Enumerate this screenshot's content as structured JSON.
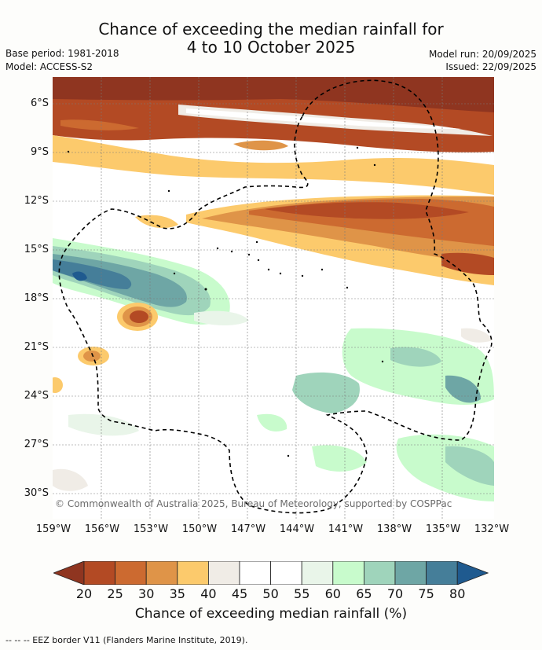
{
  "title_line1": "Chance of exceeding the median rainfall for",
  "title_line2": "4 to 10 October 2025",
  "base_period": "Base period: 1981-2018",
  "model": "Model: ACCESS-S2",
  "model_run": "Model run: 20/09/2025",
  "issued": "Issued: 22/09/2025",
  "lat_labels": [
    "6°S",
    "9°S",
    "12°S",
    "15°S",
    "18°S",
    "21°S",
    "24°S",
    "27°S",
    "30°S"
  ],
  "lon_labels": [
    "159°W",
    "156°W",
    "153°W",
    "150°W",
    "147°W",
    "144°W",
    "141°W",
    "138°W",
    "135°W",
    "132°W"
  ],
  "copyright": "© Commonwealth of Australia 2025, Bureau of Meteorology, supported by COSPPac",
  "colorbar": {
    "ticks": [
      "20",
      "25",
      "30",
      "35",
      "40",
      "45",
      "50",
      "55",
      "60",
      "65",
      "70",
      "75",
      "80"
    ],
    "colors": [
      "#b34a24",
      "#cc6a30",
      "#df9448",
      "#fcca6c",
      "#f0ece6",
      "#ffffff",
      "#ffffff",
      "#e9f5e9",
      "#c8fbcc",
      "#9fd4bb",
      "#6ea6a5",
      "#457e99"
    ],
    "low_color": "#8f3520",
    "high_color": "#1f5a8f",
    "label": "Chance of exceeding median rainfall (%)"
  },
  "footnote": "--  --  -- EEZ border V11 (Flanders Marine Institute, 2019)."
}
